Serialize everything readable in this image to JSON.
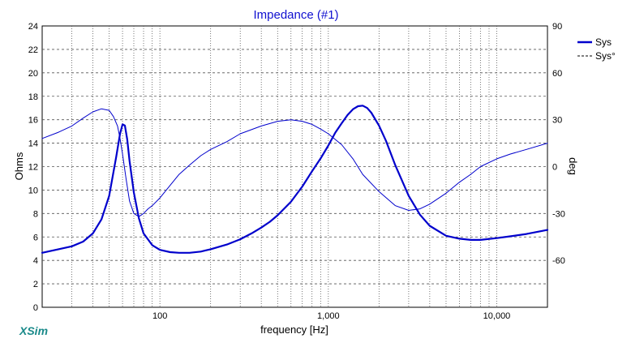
{
  "chart_data": {
    "type": "line",
    "title": "Impedance (#1)",
    "xlabel": "frequency [Hz]",
    "ylabel": "Ohms",
    "y2label": "deg",
    "xscale": "log",
    "xlim": [
      20,
      20000
    ],
    "ylim": [
      0,
      24
    ],
    "y2lim": [
      -90,
      90
    ],
    "xticks": [
      {
        "value": 100,
        "label": "100"
      },
      {
        "value": 1000,
        "label": "1,000"
      },
      {
        "value": 10000,
        "label": "10,000"
      }
    ],
    "yticks": [
      "0",
      "2",
      "4",
      "6",
      "8",
      "10",
      "12",
      "14",
      "16",
      "18",
      "20",
      "22",
      "24"
    ],
    "y2ticks": [
      "-60",
      "-30",
      "0",
      "30",
      "60",
      "90"
    ],
    "grid": true,
    "legend_position": "top-right",
    "series": [
      {
        "name": "Sys",
        "axis": "left",
        "style": "solid-thick",
        "color": "#0000cc",
        "x": [
          20,
          25,
          30,
          35,
          40,
          45,
          50,
          55,
          58,
          60,
          62,
          64,
          66,
          70,
          75,
          80,
          90,
          100,
          115,
          130,
          150,
          175,
          200,
          250,
          300,
          350,
          400,
          450,
          500,
          600,
          700,
          800,
          900,
          1000,
          1100,
          1200,
          1300,
          1400,
          1500,
          1600,
          1700,
          1800,
          2000,
          2200,
          2500,
          3000,
          3500,
          4000,
          5000,
          6000,
          7000,
          8000,
          10000,
          12000,
          15000,
          20000
        ],
        "y": [
          4.65,
          4.95,
          5.2,
          5.6,
          6.3,
          7.5,
          9.5,
          12.8,
          14.8,
          15.6,
          15.5,
          14.3,
          12.5,
          9.8,
          7.6,
          6.3,
          5.3,
          4.9,
          4.7,
          4.65,
          4.65,
          4.75,
          4.95,
          5.35,
          5.8,
          6.3,
          6.8,
          7.3,
          7.85,
          9.0,
          10.3,
          11.6,
          12.7,
          13.8,
          14.9,
          15.7,
          16.4,
          16.9,
          17.15,
          17.2,
          17.0,
          16.6,
          15.5,
          14.2,
          12.1,
          9.5,
          7.9,
          6.95,
          6.1,
          5.85,
          5.75,
          5.75,
          5.9,
          6.05,
          6.25,
          6.6
        ]
      },
      {
        "name": "Sys°",
        "axis": "right",
        "style": "solid-thin",
        "color": "#0000cc",
        "x": [
          20,
          25,
          30,
          35,
          40,
          45,
          50,
          53,
          56,
          58,
          60,
          63,
          66,
          70,
          75,
          80,
          85,
          90,
          100,
          115,
          130,
          150,
          175,
          200,
          250,
          300,
          400,
          500,
          600,
          700,
          800,
          900,
          1000,
          1200,
          1400,
          1600,
          2000,
          2500,
          3000,
          3500,
          4000,
          5000,
          6000,
          7000,
          8000,
          10000,
          12000,
          15000,
          20000
        ],
        "y": [
          18,
          22,
          26,
          31,
          35,
          37,
          36,
          32,
          26,
          18,
          8,
          -8,
          -22,
          -30,
          -32,
          -30,
          -27,
          -25,
          -20,
          -12,
          -5,
          1,
          7,
          11,
          16,
          21,
          26,
          29,
          30,
          29,
          27,
          24,
          21,
          14,
          5,
          -5,
          -16,
          -25,
          -28,
          -27,
          -24,
          -17,
          -10,
          -5,
          0,
          5,
          8,
          11,
          15
        ]
      }
    ]
  },
  "brand": "XSim"
}
